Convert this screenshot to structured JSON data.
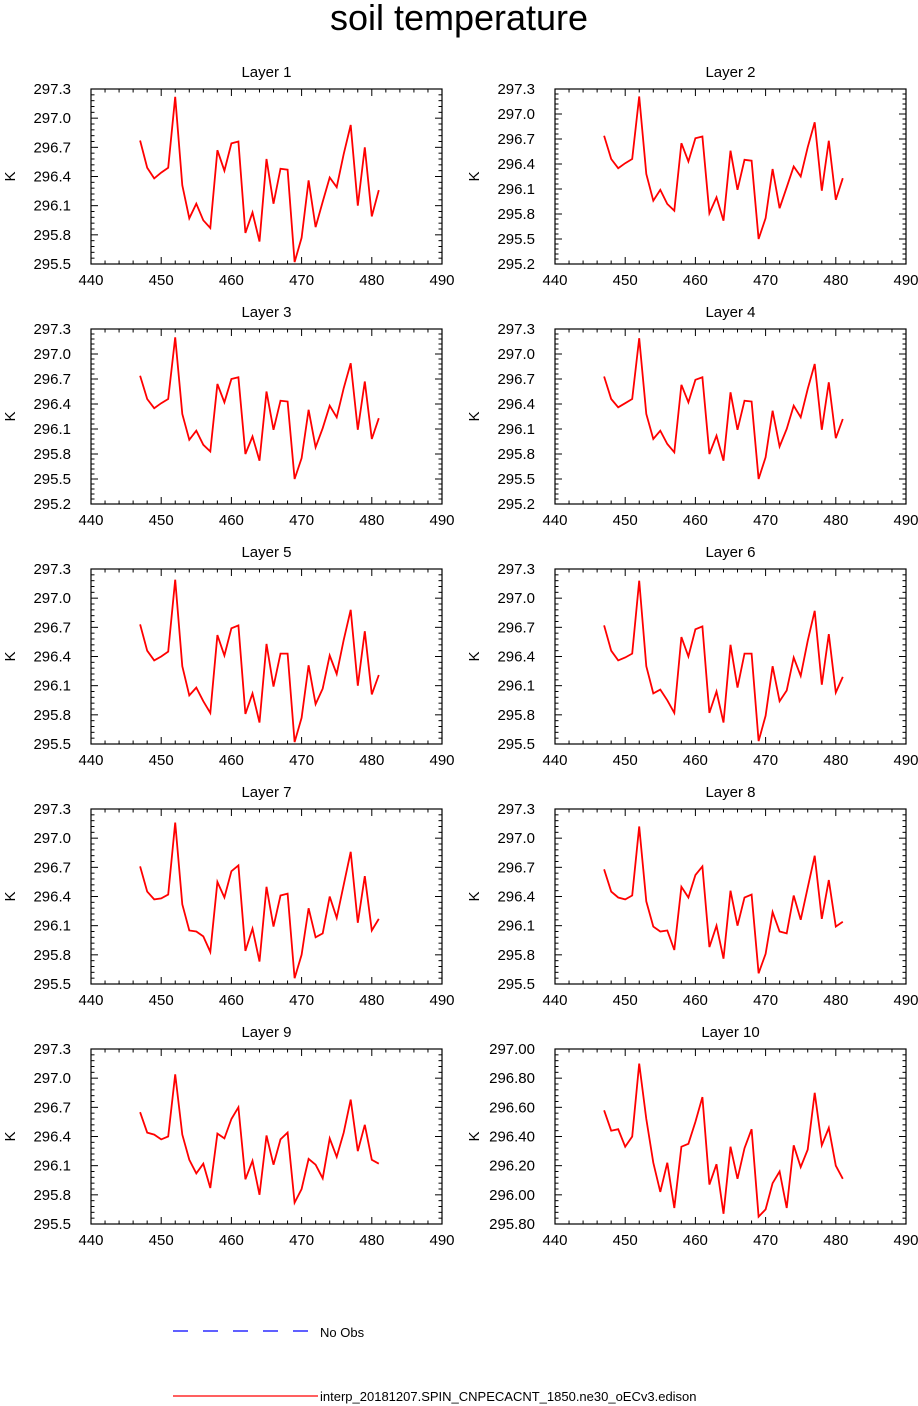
{
  "title": "soil temperature",
  "legend": {
    "obs_label": "No Obs",
    "model_label": "interp_20181207.SPIN_CNPECACNT_1850.ne30_oECv3.edison",
    "obs_color": "#0000ff",
    "model_color": "#ff0000"
  },
  "chart_data": [
    {
      "type": "line",
      "title": "Layer 1",
      "ylabel": "K",
      "xlim": [
        440,
        490
      ],
      "x_ticks": [
        440,
        450,
        460,
        470,
        480,
        490
      ],
      "ylim": [
        295.5,
        297.3
      ],
      "y_ticks": [
        "295.5",
        "295.8",
        "296.1",
        "296.4",
        "296.7",
        "297.0",
        "297.3"
      ],
      "series": [
        {
          "name": "interp_20181207.SPIN_CNPECACNT_1850.ne30_oECv3.edison",
          "color": "#ff0000",
          "x": [
            447,
            448,
            449,
            450,
            451,
            452,
            453,
            454,
            455,
            456,
            457,
            458,
            459,
            460,
            461,
            462,
            463,
            464,
            465,
            466,
            467,
            468,
            469,
            470,
            471,
            472,
            473,
            474,
            475,
            476,
            477,
            478,
            479,
            480,
            481
          ],
          "y": [
            296.77,
            296.49,
            296.38,
            296.44,
            296.49,
            297.22,
            296.31,
            295.97,
            296.12,
            295.95,
            295.87,
            296.67,
            296.46,
            296.74,
            296.76,
            295.82,
            296.03,
            295.73,
            296.58,
            296.12,
            296.48,
            296.47,
            295.52,
            295.77,
            296.36,
            295.88,
            296.14,
            296.39,
            296.29,
            296.63,
            296.93,
            296.1,
            296.7,
            295.99,
            296.26
          ]
        }
      ]
    },
    {
      "type": "line",
      "title": "Layer 2",
      "ylabel": "K",
      "xlim": [
        440,
        490
      ],
      "x_ticks": [
        440,
        450,
        460,
        470,
        480,
        490
      ],
      "ylim": [
        295.2,
        297.3
      ],
      "y_ticks": [
        "295.2",
        "295.5",
        "295.8",
        "296.1",
        "296.4",
        "296.7",
        "297.0",
        "297.3"
      ],
      "series": [
        {
          "name": "interp_20181207.SPIN_CNPECACNT_1850.ne30_oECv3.edison",
          "color": "#ff0000",
          "x": [
            447,
            448,
            449,
            450,
            451,
            452,
            453,
            454,
            455,
            456,
            457,
            458,
            459,
            460,
            461,
            462,
            463,
            464,
            465,
            466,
            467,
            468,
            469,
            470,
            471,
            472,
            473,
            474,
            475,
            476,
            477,
            478,
            479,
            480,
            481
          ],
          "y": [
            296.74,
            296.46,
            296.35,
            296.41,
            296.46,
            297.21,
            296.28,
            295.96,
            296.09,
            295.92,
            295.84,
            296.65,
            296.43,
            296.71,
            296.73,
            295.81,
            296.0,
            295.72,
            296.56,
            296.09,
            296.45,
            296.44,
            295.5,
            295.75,
            296.34,
            295.87,
            296.12,
            296.37,
            296.25,
            296.6,
            296.9,
            296.08,
            296.68,
            295.97,
            296.23
          ]
        }
      ]
    },
    {
      "type": "line",
      "title": "Layer 3",
      "ylabel": "K",
      "xlim": [
        440,
        490
      ],
      "x_ticks": [
        440,
        450,
        460,
        470,
        480,
        490
      ],
      "ylim": [
        295.2,
        297.3
      ],
      "y_ticks": [
        "295.2",
        "295.5",
        "295.8",
        "296.1",
        "296.4",
        "296.7",
        "297.0",
        "297.3"
      ],
      "series": [
        {
          "name": "interp_20181207.SPIN_CNPECACNT_1850.ne30_oECv3.edison",
          "color": "#ff0000",
          "x": [
            447,
            448,
            449,
            450,
            451,
            452,
            453,
            454,
            455,
            456,
            457,
            458,
            459,
            460,
            461,
            462,
            463,
            464,
            465,
            466,
            467,
            468,
            469,
            470,
            471,
            472,
            473,
            474,
            475,
            476,
            477,
            478,
            479,
            480,
            481
          ],
          "y": [
            296.74,
            296.46,
            296.35,
            296.41,
            296.46,
            297.2,
            296.28,
            295.97,
            296.08,
            295.91,
            295.83,
            296.64,
            296.42,
            296.7,
            296.72,
            295.8,
            296.01,
            295.72,
            296.55,
            296.09,
            296.44,
            296.43,
            295.5,
            295.75,
            296.33,
            295.88,
            296.11,
            296.38,
            296.24,
            296.59,
            296.89,
            296.09,
            296.67,
            295.98,
            296.23
          ]
        }
      ]
    },
    {
      "type": "line",
      "title": "Layer 4",
      "ylabel": "K",
      "xlim": [
        440,
        490
      ],
      "x_ticks": [
        440,
        450,
        460,
        470,
        480,
        490
      ],
      "ylim": [
        295.2,
        297.3
      ],
      "y_ticks": [
        "295.2",
        "295.5",
        "295.8",
        "296.1",
        "296.4",
        "296.7",
        "297.0",
        "297.3"
      ],
      "series": [
        {
          "name": "interp_20181207.SPIN_CNPECACNT_1850.ne30_oECv3.edison",
          "color": "#ff0000",
          "x": [
            447,
            448,
            449,
            450,
            451,
            452,
            453,
            454,
            455,
            456,
            457,
            458,
            459,
            460,
            461,
            462,
            463,
            464,
            465,
            466,
            467,
            468,
            469,
            470,
            471,
            472,
            473,
            474,
            475,
            476,
            477,
            478,
            479,
            480,
            481
          ],
          "y": [
            296.73,
            296.46,
            296.36,
            296.41,
            296.46,
            297.19,
            296.28,
            295.98,
            296.08,
            295.92,
            295.82,
            296.63,
            296.42,
            296.69,
            296.72,
            295.8,
            296.02,
            295.72,
            296.54,
            296.09,
            296.44,
            296.43,
            295.5,
            295.76,
            296.32,
            295.89,
            296.1,
            296.38,
            296.24,
            296.58,
            296.88,
            296.09,
            296.66,
            295.99,
            296.22
          ]
        }
      ]
    },
    {
      "type": "line",
      "title": "Layer 5",
      "ylabel": "K",
      "xlim": [
        440,
        490
      ],
      "x_ticks": [
        440,
        450,
        460,
        470,
        480,
        490
      ],
      "ylim": [
        295.5,
        297.3
      ],
      "y_ticks": [
        "295.5",
        "295.8",
        "296.1",
        "296.4",
        "296.7",
        "297.0",
        "297.3"
      ],
      "series": [
        {
          "name": "interp_20181207.SPIN_CNPECACNT_1850.ne30_oECv3.edison",
          "color": "#ff0000",
          "x": [
            447,
            448,
            449,
            450,
            451,
            452,
            453,
            454,
            455,
            456,
            457,
            458,
            459,
            460,
            461,
            462,
            463,
            464,
            465,
            466,
            467,
            468,
            469,
            470,
            471,
            472,
            473,
            474,
            475,
            476,
            477,
            478,
            479,
            480,
            481
          ],
          "y": [
            296.73,
            296.46,
            296.36,
            296.4,
            296.45,
            297.19,
            296.3,
            296.0,
            296.08,
            295.94,
            295.82,
            296.62,
            296.41,
            296.69,
            296.72,
            295.81,
            296.02,
            295.72,
            296.53,
            296.09,
            296.43,
            296.43,
            295.52,
            295.77,
            296.31,
            295.91,
            296.07,
            296.41,
            296.22,
            296.57,
            296.88,
            296.1,
            296.66,
            296.01,
            296.21
          ]
        }
      ]
    },
    {
      "type": "line",
      "title": "Layer 6",
      "ylabel": "K",
      "xlim": [
        440,
        490
      ],
      "x_ticks": [
        440,
        450,
        460,
        470,
        480,
        490
      ],
      "ylim": [
        295.5,
        297.3
      ],
      "y_ticks": [
        "295.5",
        "295.8",
        "296.1",
        "296.4",
        "296.7",
        "297.0",
        "297.3"
      ],
      "series": [
        {
          "name": "interp_20181207.SPIN_CNPECACNT_1850.ne30_oECv3.edison",
          "color": "#ff0000",
          "x": [
            447,
            448,
            449,
            450,
            451,
            452,
            453,
            454,
            455,
            456,
            457,
            458,
            459,
            460,
            461,
            462,
            463,
            464,
            465,
            466,
            467,
            468,
            469,
            470,
            471,
            472,
            473,
            474,
            475,
            476,
            477,
            478,
            479,
            480,
            481
          ],
          "y": [
            296.72,
            296.46,
            296.36,
            296.39,
            296.43,
            297.18,
            296.3,
            296.02,
            296.06,
            295.95,
            295.82,
            296.6,
            296.4,
            296.68,
            296.71,
            295.82,
            296.04,
            295.72,
            296.52,
            296.08,
            296.43,
            296.43,
            295.53,
            295.79,
            296.3,
            295.94,
            296.05,
            296.39,
            296.2,
            296.56,
            296.87,
            296.11,
            296.63,
            296.03,
            296.19
          ]
        }
      ]
    },
    {
      "type": "line",
      "title": "Layer 7",
      "ylabel": "K",
      "xlim": [
        440,
        490
      ],
      "x_ticks": [
        440,
        450,
        460,
        470,
        480,
        490
      ],
      "ylim": [
        295.5,
        297.3
      ],
      "y_ticks": [
        "295.5",
        "295.8",
        "296.1",
        "296.4",
        "296.7",
        "297.0",
        "297.3"
      ],
      "series": [
        {
          "name": "interp_20181207.SPIN_CNPECACNT_1850.ne30_oECv3.edison",
          "color": "#ff0000",
          "x": [
            447,
            448,
            449,
            450,
            451,
            452,
            453,
            454,
            455,
            456,
            457,
            458,
            459,
            460,
            461,
            462,
            463,
            464,
            465,
            466,
            467,
            468,
            469,
            470,
            471,
            472,
            473,
            474,
            475,
            476,
            477,
            478,
            479,
            480,
            481
          ],
          "y": [
            296.71,
            296.45,
            296.37,
            296.38,
            296.42,
            297.16,
            296.32,
            296.05,
            296.04,
            295.99,
            295.83,
            296.55,
            296.39,
            296.66,
            296.72,
            295.84,
            296.07,
            295.73,
            296.5,
            296.09,
            296.41,
            296.43,
            295.56,
            295.8,
            296.28,
            295.98,
            296.02,
            296.4,
            296.18,
            296.52,
            296.86,
            296.13,
            296.61,
            296.05,
            296.17
          ]
        }
      ]
    },
    {
      "type": "line",
      "title": "Layer 8",
      "ylabel": "K",
      "xlim": [
        440,
        490
      ],
      "x_ticks": [
        440,
        450,
        460,
        470,
        480,
        490
      ],
      "ylim": [
        295.5,
        297.3
      ],
      "y_ticks": [
        "295.5",
        "295.8",
        "296.1",
        "296.4",
        "296.7",
        "297.0",
        "297.3"
      ],
      "series": [
        {
          "name": "interp_20181207.SPIN_CNPECACNT_1850.ne30_oECv3.edison",
          "color": "#ff0000",
          "x": [
            447,
            448,
            449,
            450,
            451,
            452,
            453,
            454,
            455,
            456,
            457,
            458,
            459,
            460,
            461,
            462,
            463,
            464,
            465,
            466,
            467,
            468,
            469,
            470,
            471,
            472,
            473,
            474,
            475,
            476,
            477,
            478,
            479,
            480,
            481
          ],
          "y": [
            296.68,
            296.45,
            296.39,
            296.37,
            296.41,
            297.12,
            296.35,
            296.09,
            296.04,
            296.05,
            295.85,
            296.5,
            296.39,
            296.62,
            296.71,
            295.88,
            296.1,
            295.76,
            296.46,
            296.1,
            296.39,
            296.42,
            295.61,
            295.81,
            296.24,
            296.04,
            296.02,
            296.41,
            296.16,
            296.49,
            296.82,
            296.17,
            296.57,
            296.09,
            296.14
          ]
        }
      ]
    },
    {
      "type": "line",
      "title": "Layer 9",
      "ylabel": "K",
      "xlim": [
        440,
        490
      ],
      "x_ticks": [
        440,
        450,
        460,
        470,
        480,
        490
      ],
      "ylim": [
        295.5,
        297.3
      ],
      "y_ticks": [
        "295.5",
        "295.8",
        "296.1",
        "296.4",
        "296.7",
        "297.0",
        "297.3"
      ],
      "series": [
        {
          "name": "interp_20181207.SPIN_CNPECACNT_1850.ne30_oECv3.edison",
          "color": "#ff0000",
          "x": [
            447,
            448,
            449,
            450,
            451,
            452,
            453,
            454,
            455,
            456,
            457,
            458,
            459,
            460,
            461,
            462,
            463,
            464,
            465,
            466,
            467,
            468,
            469,
            470,
            471,
            472,
            473,
            474,
            475,
            476,
            477,
            478,
            479,
            480,
            481
          ],
          "y": [
            296.65,
            296.44,
            296.42,
            296.37,
            296.4,
            297.04,
            296.42,
            296.16,
            296.02,
            296.12,
            295.87,
            296.43,
            296.38,
            296.58,
            296.7,
            295.96,
            296.15,
            295.8,
            296.41,
            296.11,
            296.37,
            296.44,
            295.72,
            295.86,
            296.17,
            296.11,
            295.97,
            296.38,
            296.19,
            296.44,
            296.78,
            296.25,
            296.52,
            296.16,
            296.12
          ]
        }
      ]
    },
    {
      "type": "line",
      "title": "Layer 10",
      "ylabel": "K",
      "xlim": [
        440,
        490
      ],
      "x_ticks": [
        440,
        450,
        460,
        470,
        480,
        490
      ],
      "ylim": [
        295.8,
        297.0
      ],
      "y_ticks": [
        "295.80",
        "296.00",
        "296.20",
        "296.40",
        "296.60",
        "296.80",
        "297.00"
      ],
      "series": [
        {
          "name": "interp_20181207.SPIN_CNPECACNT_1850.ne30_oECv3.edison",
          "color": "#ff0000",
          "x": [
            447,
            448,
            449,
            450,
            451,
            452,
            453,
            454,
            455,
            456,
            457,
            458,
            459,
            460,
            461,
            462,
            463,
            464,
            465,
            466,
            467,
            468,
            469,
            470,
            471,
            472,
            473,
            474,
            475,
            476,
            477,
            478,
            479,
            480,
            481
          ],
          "y": [
            296.58,
            296.44,
            296.45,
            296.33,
            296.4,
            296.9,
            296.52,
            296.22,
            296.02,
            296.22,
            295.91,
            296.33,
            296.35,
            296.5,
            296.67,
            296.07,
            296.21,
            295.87,
            296.33,
            296.11,
            296.32,
            296.45,
            295.85,
            295.9,
            296.08,
            296.16,
            295.91,
            296.34,
            296.19,
            296.31,
            296.7,
            296.34,
            296.46,
            296.2,
            296.11
          ]
        }
      ]
    }
  ]
}
